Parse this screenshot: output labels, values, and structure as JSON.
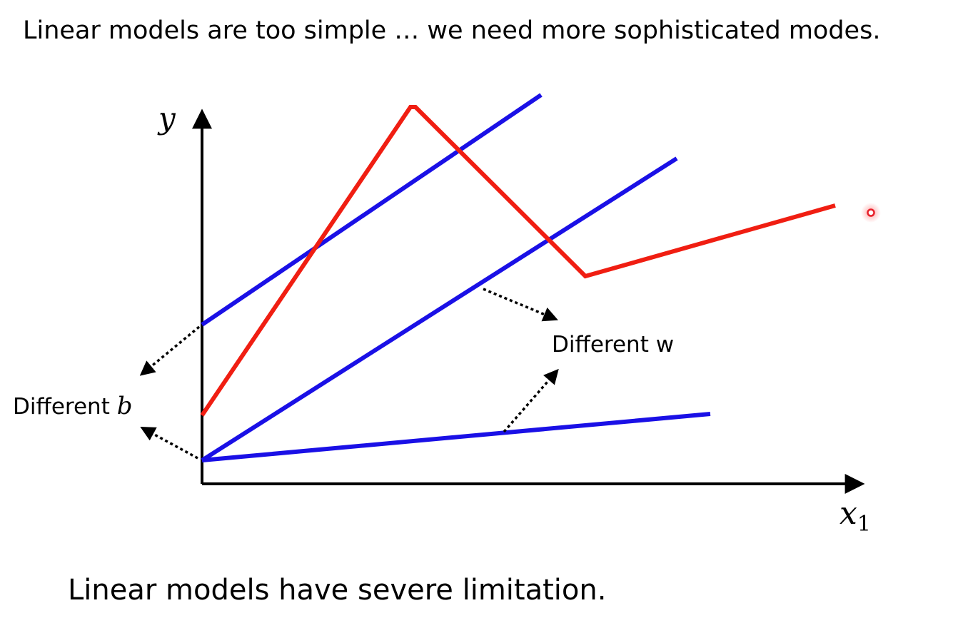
{
  "slide": {
    "heading": "Linear models are too simple … we need more sophisticated modes.",
    "caption": "Linear models have severe limitation."
  },
  "diagram": {
    "y_axis_label": "y",
    "x_axis_label_base": "x",
    "x_axis_label_subscript": "1",
    "annotation_w": "Different w",
    "annotation_b_text": "Different ",
    "annotation_b_symbol": "b",
    "colors": {
      "linear_models": "#1a10e6",
      "piecewise_model": "#f01e12",
      "axes": "#000000",
      "pointer_dot": "#e8202a"
    },
    "icons": [
      "pointer-dot-icon"
    ]
  }
}
